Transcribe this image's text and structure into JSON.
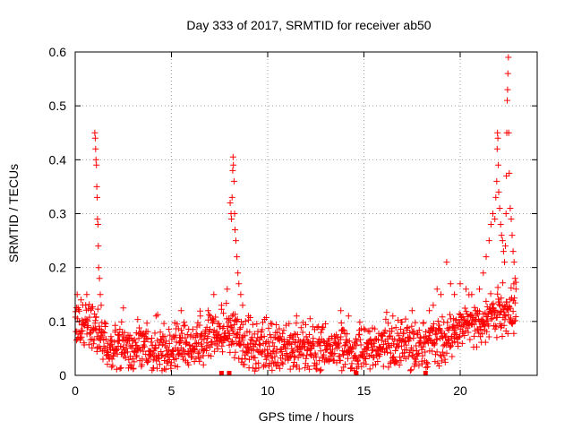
{
  "chart_data": {
    "type": "scatter",
    "title": "Day 333 of 2017, SRMTID for receiver ab50",
    "xlabel": "GPS time / hours",
    "ylabel": "SRMTID / TECUs",
    "xlim": [
      0,
      24
    ],
    "ylim": [
      0,
      0.6
    ],
    "x_ticks": [
      0,
      5,
      10,
      15,
      20
    ],
    "x_tick_labels": [
      "0",
      "5",
      "10",
      "15",
      "20"
    ],
    "y_ticks": [
      0,
      0.1,
      0.2,
      0.3,
      0.4,
      0.5,
      0.6
    ],
    "y_tick_labels": [
      "0",
      "0.1",
      "0.2",
      "0.3",
      "0.4",
      "0.5",
      "0.6"
    ],
    "grid": true,
    "marker": "plus",
    "color": "#ff0000",
    "series": [
      {
        "name": "SRMTID",
        "baseline": [
          [
            0.0,
            0.09
          ],
          [
            0.5,
            0.1
          ],
          [
            1.0,
            0.09
          ],
          [
            1.4,
            0.065
          ],
          [
            2.0,
            0.055
          ],
          [
            3.0,
            0.055
          ],
          [
            4.0,
            0.05
          ],
          [
            5.0,
            0.05
          ],
          [
            6.0,
            0.055
          ],
          [
            7.0,
            0.07
          ],
          [
            7.5,
            0.08
          ],
          [
            8.0,
            0.08
          ],
          [
            8.5,
            0.07
          ],
          [
            9.0,
            0.055
          ],
          [
            10.0,
            0.05
          ],
          [
            11.0,
            0.05
          ],
          [
            12.0,
            0.05
          ],
          [
            13.0,
            0.05
          ],
          [
            14.0,
            0.055
          ],
          [
            14.5,
            0.04
          ],
          [
            15.0,
            0.05
          ],
          [
            16.0,
            0.055
          ],
          [
            17.0,
            0.06
          ],
          [
            18.0,
            0.055
          ],
          [
            19.0,
            0.07
          ],
          [
            20.0,
            0.09
          ],
          [
            21.0,
            0.1
          ],
          [
            22.0,
            0.12
          ],
          [
            22.8,
            0.12
          ]
        ],
        "spikes": [
          [
            0.1,
            0.15
          ],
          [
            0.3,
            0.14
          ],
          [
            0.6,
            0.15
          ],
          [
            1.02,
            0.45
          ],
          [
            1.04,
            0.44
          ],
          [
            1.06,
            0.42
          ],
          [
            1.08,
            0.4
          ],
          [
            1.1,
            0.39
          ],
          [
            1.12,
            0.35
          ],
          [
            1.14,
            0.33
          ],
          [
            1.16,
            0.29
          ],
          [
            1.18,
            0.28
          ],
          [
            1.2,
            0.24
          ],
          [
            1.22,
            0.2
          ],
          [
            1.26,
            0.18
          ],
          [
            1.3,
            0.15
          ],
          [
            1.35,
            0.13
          ],
          [
            2.5,
            0.125
          ],
          [
            4.2,
            0.11
          ],
          [
            5.5,
            0.12
          ],
          [
            6.5,
            0.11
          ],
          [
            6.9,
            0.12
          ],
          [
            7.2,
            0.15
          ],
          [
            7.6,
            0.13
          ],
          [
            7.9,
            0.16
          ],
          [
            8.05,
            0.32
          ],
          [
            8.1,
            0.3
          ],
          [
            8.12,
            0.29
          ],
          [
            8.15,
            0.33
          ],
          [
            8.18,
            0.38
          ],
          [
            8.2,
            0.405
          ],
          [
            8.22,
            0.39
          ],
          [
            8.25,
            0.36
          ],
          [
            8.28,
            0.3
          ],
          [
            8.3,
            0.27
          ],
          [
            8.35,
            0.25
          ],
          [
            8.4,
            0.22
          ],
          [
            8.45,
            0.19
          ],
          [
            8.5,
            0.17
          ],
          [
            8.6,
            0.15
          ],
          [
            8.7,
            0.13
          ],
          [
            9.0,
            0.11
          ],
          [
            11.5,
            0.11
          ],
          [
            12.2,
            0.105
          ],
          [
            13.8,
            0.12
          ],
          [
            14.2,
            0.11
          ],
          [
            16.5,
            0.11
          ],
          [
            17.5,
            0.12
          ],
          [
            18.4,
            0.12
          ],
          [
            18.6,
            0.13
          ],
          [
            18.8,
            0.16
          ],
          [
            19.0,
            0.15
          ],
          [
            19.3,
            0.21
          ],
          [
            19.5,
            0.17
          ],
          [
            19.7,
            0.15
          ],
          [
            20.0,
            0.17
          ],
          [
            20.3,
            0.16
          ],
          [
            20.6,
            0.15
          ],
          [
            21.0,
            0.16
          ],
          [
            21.2,
            0.19
          ],
          [
            21.35,
            0.22
          ],
          [
            21.5,
            0.25
          ],
          [
            21.6,
            0.28
          ],
          [
            21.7,
            0.3
          ],
          [
            21.8,
            0.29
          ],
          [
            21.85,
            0.33
          ],
          [
            21.9,
            0.36
          ],
          [
            21.92,
            0.42
          ],
          [
            21.94,
            0.45
          ],
          [
            21.96,
            0.44
          ],
          [
            21.98,
            0.39
          ],
          [
            22.0,
            0.34
          ],
          [
            22.05,
            0.31
          ],
          [
            22.1,
            0.28
          ],
          [
            22.15,
            0.26
          ],
          [
            22.2,
            0.25
          ],
          [
            22.25,
            0.23
          ],
          [
            22.3,
            0.21
          ],
          [
            22.35,
            0.24
          ],
          [
            22.38,
            0.3
          ],
          [
            22.4,
            0.37
          ],
          [
            22.42,
            0.45
          ],
          [
            22.44,
            0.51
          ],
          [
            22.46,
            0.53
          ],
          [
            22.48,
            0.56
          ],
          [
            22.5,
            0.59
          ],
          [
            22.52,
            0.45
          ],
          [
            22.55,
            0.375
          ],
          [
            22.6,
            0.31
          ],
          [
            22.65,
            0.29
          ],
          [
            22.7,
            0.26
          ],
          [
            22.75,
            0.23
          ],
          [
            22.8,
            0.21
          ],
          [
            22.85,
            0.18
          ],
          [
            22.9,
            0.16
          ]
        ],
        "gap_markers": [
          7.6,
          8.0,
          14.6,
          18.2
        ],
        "x_range": [
          0,
          22.9
        ],
        "approx_point_count": 1380
      }
    ]
  }
}
